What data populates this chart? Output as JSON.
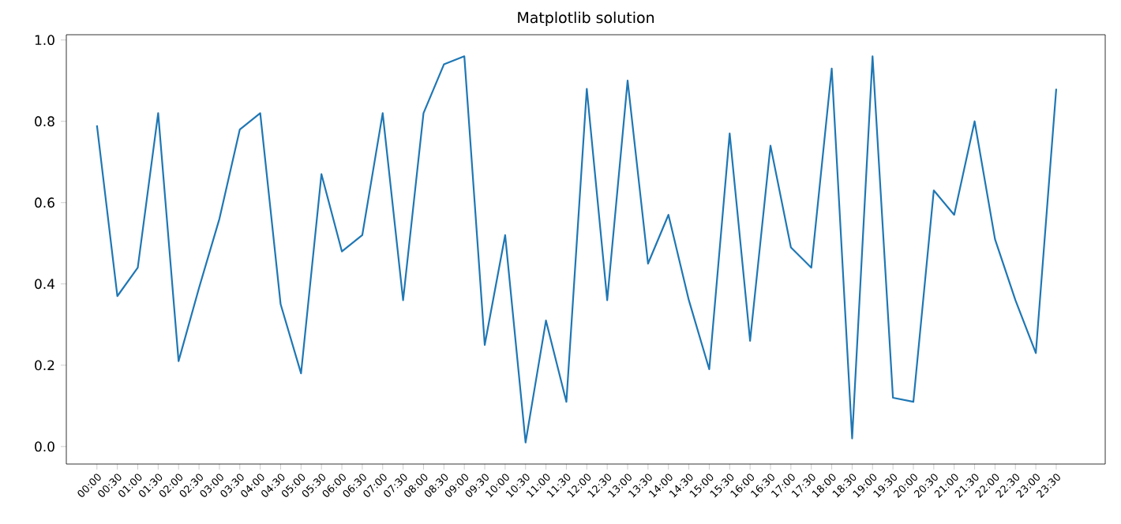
{
  "chart_data": {
    "type": "line",
    "title": "Matplotlib solution",
    "categories": [
      "00:00",
      "00:30",
      "01:00",
      "01:30",
      "02:00",
      "02:30",
      "03:00",
      "03:30",
      "04:00",
      "04:30",
      "05:00",
      "05:30",
      "06:00",
      "06:30",
      "07:00",
      "07:30",
      "08:00",
      "08:30",
      "09:00",
      "09:30",
      "10:00",
      "10:30",
      "11:00",
      "11:30",
      "12:00",
      "12:30",
      "13:00",
      "13:30",
      "14:00",
      "14:30",
      "15:00",
      "15:30",
      "16:00",
      "16:30",
      "17:00",
      "17:30",
      "18:00",
      "18:30",
      "19:00",
      "19:30",
      "20:00",
      "20:30",
      "21:00",
      "21:30",
      "22:00",
      "22:30",
      "23:00",
      "23:30"
    ],
    "values": [
      0.79,
      0.37,
      0.44,
      0.82,
      0.21,
      0.39,
      0.56,
      0.78,
      0.82,
      0.35,
      0.18,
      0.67,
      0.48,
      0.52,
      0.82,
      0.36,
      0.82,
      0.94,
      0.96,
      0.25,
      0.52,
      0.01,
      0.31,
      0.11,
      0.88,
      0.36,
      0.9,
      0.45,
      0.57,
      0.36,
      0.19,
      0.77,
      0.26,
      0.74,
      0.49,
      0.44,
      0.93,
      0.02,
      0.96,
      0.12,
      0.11,
      0.63,
      0.57,
      0.8,
      0.51,
      0.36,
      0.23,
      0.88
    ],
    "color": "#1f77b4",
    "ylim": [
      -0.043,
      1.013
    ],
    "yticks": [
      {
        "value": 0,
        "label": "0.0"
      },
      {
        "value": 0.2,
        "label": "0.2"
      },
      {
        "value": 0.4,
        "label": "0.4"
      },
      {
        "value": 0.6,
        "label": "0.6"
      },
      {
        "value": 0.8,
        "label": "0.8"
      },
      {
        "value": 1.0,
        "label": "1.0"
      }
    ]
  }
}
